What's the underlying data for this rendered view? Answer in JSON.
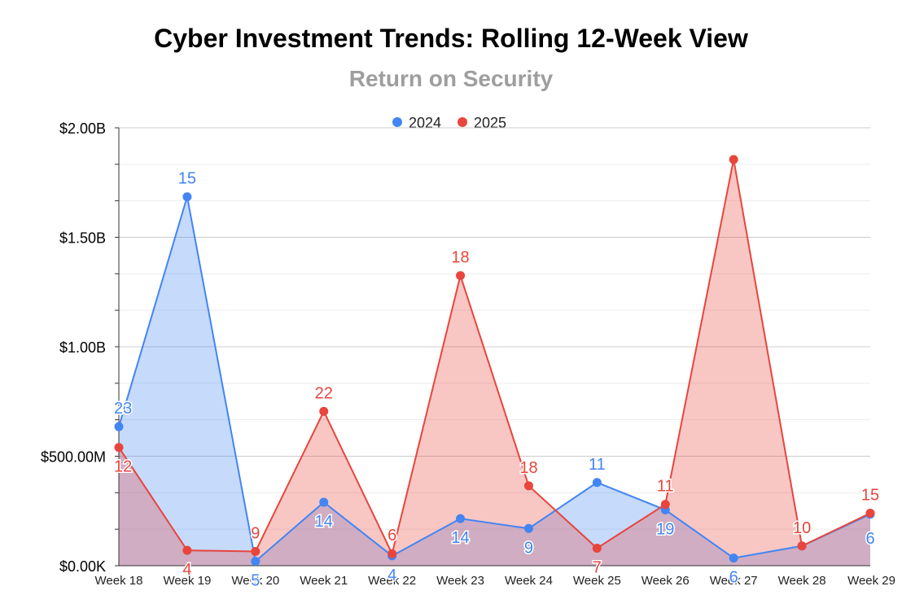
{
  "colors": {
    "s2024": "#4285f4",
    "s2025": "#e8453c",
    "grid": "#d9d9d9",
    "axis": "#333333"
  },
  "chart_data": {
    "type": "area",
    "title": "Cyber Investment Trends: Rolling 12-Week View",
    "subtitle": "Return on Security",
    "xlabel": "",
    "ylabel": "",
    "ylim": [
      0,
      2000000000
    ],
    "yticks": [
      0,
      500000000,
      1000000000,
      1500000000,
      2000000000
    ],
    "ytick_labels": [
      "$0.00K",
      "$500.00M",
      "$1.00B",
      "$1.50B",
      "$2.00B"
    ],
    "grid": true,
    "legend_position": "top",
    "categories": [
      "Week 18",
      "Week 19",
      "Week 20",
      "Week 21",
      "Week 22",
      "Week 23",
      "Week 24",
      "Week 25",
      "Week 26",
      "Week 27",
      "Week 28",
      "Week 29"
    ],
    "series": [
      {
        "name": "2024",
        "values": [
          635000000,
          1685000000,
          20000000,
          290000000,
          45000000,
          215000000,
          170000000,
          380000000,
          255000000,
          35000000,
          90000000,
          235000000
        ],
        "labels": [
          "23",
          "15",
          "5",
          "14",
          "4",
          "14",
          "9",
          "11",
          "19",
          "6",
          "10",
          "6"
        ]
      },
      {
        "name": "2025",
        "values": [
          540000000,
          70000000,
          65000000,
          705000000,
          55000000,
          1325000000,
          365000000,
          80000000,
          280000000,
          1855000000,
          90000000,
          240000000
        ],
        "labels": [
          "12",
          "4",
          "9",
          "22",
          "6",
          "18",
          "18",
          "7",
          "11",
          "",
          "10",
          "15"
        ]
      }
    ]
  }
}
